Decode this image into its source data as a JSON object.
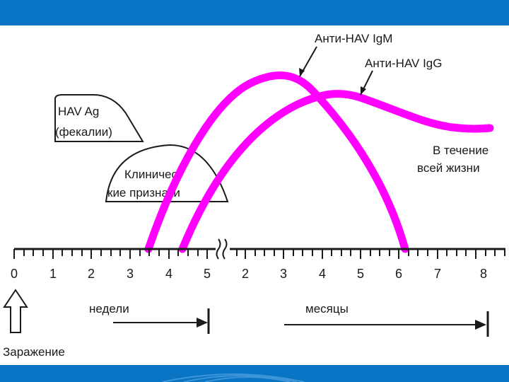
{
  "labels": {
    "igm": "Анти-HAV IgM",
    "igg": "Анти-HAV IgG",
    "lifelong_line1": "В течение",
    "lifelong_line2": "всей жизни",
    "antigen_line1": "HAV Ag",
    "antigen_line2": "(фекалии)",
    "clinical_line1": "Клиничес-",
    "clinical_line2": "кие признаки",
    "weeks": "недели",
    "months": "месяцы",
    "infection": "Заражение"
  },
  "axis": {
    "weeks_ticks": [
      "0",
      "1",
      "2",
      "3",
      "4",
      "5"
    ],
    "months_ticks": [
      "2",
      "3",
      "4",
      "5",
      "6",
      "7",
      "8"
    ]
  },
  "colors": {
    "frame": "#0a74c4",
    "curve": "#ff00ff",
    "ink": "#1a1a1a"
  },
  "icons": {
    "axis_break": "wavy-break-icon",
    "infection_arrow": "up-arrow-icon"
  }
}
